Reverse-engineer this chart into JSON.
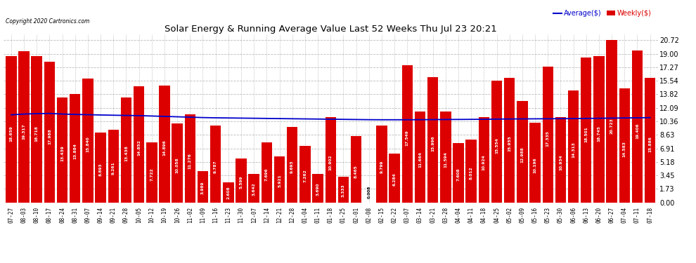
{
  "title": "Solar Energy & Running Average Value Last 52 Weeks Thu Jul 23 20:21",
  "copyright": "Copyright 2020 Cartronics.com",
  "legend_avg": "Average($)",
  "legend_weekly": "Weekly($)",
  "bar_color": "#dd0000",
  "avg_line_color": "#0000cc",
  "background_color": "#ffffff",
  "grid_color": "#bbbbbb",
  "categories": [
    "07-27",
    "08-03",
    "08-10",
    "08-17",
    "08-24",
    "08-31",
    "09-07",
    "09-14",
    "09-21",
    "09-28",
    "10-05",
    "10-12",
    "10-19",
    "10-26",
    "11-02",
    "11-09",
    "11-16",
    "11-23",
    "11-30",
    "12-07",
    "12-14",
    "12-21",
    "12-28",
    "01-04",
    "01-11",
    "01-18",
    "01-25",
    "02-01",
    "02-08",
    "02-15",
    "02-22",
    "03-07",
    "03-14",
    "03-21",
    "03-28",
    "04-04",
    "04-11",
    "04-18",
    "04-25",
    "05-02",
    "05-09",
    "05-16",
    "05-23",
    "05-30",
    "06-06",
    "06-13",
    "06-20",
    "06-27",
    "07-04",
    "07-11",
    "07-18"
  ],
  "weekly_values": [
    18.659,
    19.317,
    18.718,
    17.988,
    13.439,
    13.884,
    15.84,
    8.893,
    9.261,
    13.438,
    14.852,
    7.722,
    14.896,
    10.058,
    11.276,
    3.989,
    9.787,
    2.608,
    5.599,
    3.642,
    7.696,
    5.921,
    9.693,
    7.262,
    3.69,
    10.902,
    3.333,
    8.465,
    0.008,
    9.799,
    6.284,
    17.549,
    11.664,
    15.996,
    11.594,
    7.608,
    8.012,
    10.924,
    15.554,
    15.955,
    12.988,
    10.196,
    17.335,
    10.934,
    14.313,
    18.501,
    18.745,
    20.723,
    14.583,
    19.406,
    15.886
  ],
  "avg_values": [
    11.2,
    11.3,
    11.35,
    11.38,
    11.3,
    11.25,
    11.22,
    11.18,
    11.15,
    11.12,
    11.1,
    11.05,
    11.0,
    10.95,
    10.9,
    10.85,
    10.82,
    10.8,
    10.78,
    10.76,
    10.74,
    10.72,
    10.7,
    10.68,
    10.66,
    10.64,
    10.62,
    10.6,
    10.58,
    10.57,
    10.57,
    10.57,
    10.58,
    10.59,
    10.6,
    10.61,
    10.62,
    10.63,
    10.65,
    10.67,
    10.68,
    10.69,
    10.7,
    10.71,
    10.72,
    10.74,
    10.76,
    10.78,
    10.8,
    10.82,
    10.84
  ],
  "yticks": [
    0.0,
    1.73,
    3.45,
    5.18,
    6.91,
    8.63,
    10.36,
    12.09,
    13.82,
    15.54,
    17.27,
    19.0,
    20.72
  ],
  "ymax": 21.5,
  "ymin": 0.0
}
